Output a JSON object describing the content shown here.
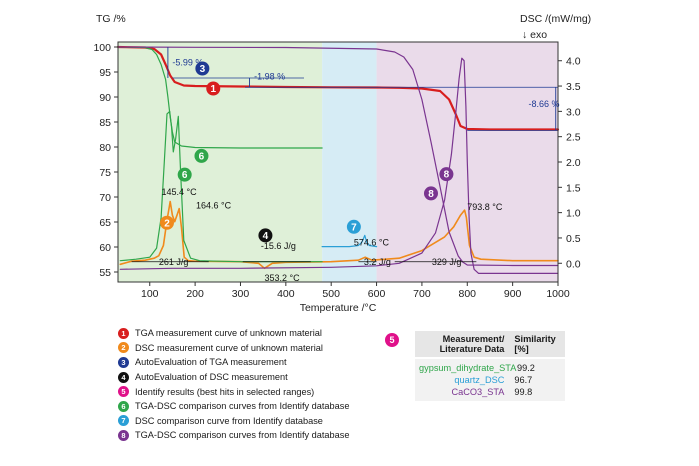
{
  "chart_data": {
    "type": "line",
    "xlabel": "Temperature /°C",
    "ylabel_left": "TG /%",
    "ylabel_right": "DSC /(mW/mg)",
    "exo_label": "↓ exo",
    "xlim": [
      30,
      1000
    ],
    "ylim_left": [
      53,
      101
    ],
    "ylim_right": [
      -0.37,
      4.37
    ],
    "x_ticks": [
      "100",
      "200",
      "300",
      "400",
      "500",
      "600",
      "700",
      "800",
      "900",
      "1000"
    ],
    "y_ticks_left": [
      "100",
      "95",
      "90",
      "85",
      "80",
      "75",
      "70",
      "65",
      "60",
      "55"
    ],
    "y_ticks_right": [
      "4.0",
      "3.5",
      "3.0",
      "2.5",
      "2.0",
      "1.5",
      "1.0",
      "0.5",
      "0.0"
    ],
    "background_ranges": [
      {
        "xmin": 30,
        "xmax": 480,
        "color": "#dff0d8"
      },
      {
        "xmin": 480,
        "xmax": 600,
        "color": "#d6ecf5"
      },
      {
        "xmin": 600,
        "xmax": 1000,
        "color": "#eadbea"
      }
    ],
    "series": [
      {
        "key": "tga_unknown",
        "axis": "left",
        "color": "#d81e1e",
        "width": 2.2,
        "x": [
          30,
          90,
          110,
          125,
          135,
          145,
          155,
          175,
          200,
          300,
          400,
          500,
          600,
          650,
          700,
          740,
          760,
          775,
          785,
          800,
          850,
          900,
          1000
        ],
        "y": [
          100,
          99.9,
          99.6,
          98.5,
          96.5,
          94.3,
          93.0,
          92.3,
          92.2,
          92.1,
          92.0,
          91.95,
          91.9,
          91.85,
          91.7,
          91.2,
          89.5,
          86.5,
          84.2,
          83.6,
          83.5,
          83.5,
          83.5
        ]
      },
      {
        "key": "dsc_unknown",
        "axis": "right",
        "color": "#f08a1c",
        "width": 1.6,
        "x": [
          35,
          60,
          90,
          110,
          120,
          130,
          138,
          145,
          150,
          155,
          160,
          165,
          170,
          176,
          185,
          200,
          300,
          340,
          353,
          370,
          400,
          500,
          560,
          575,
          590,
          650,
          700,
          750,
          770,
          785,
          794,
          798,
          805,
          815,
          830,
          900,
          1000
        ],
        "y": [
          -0.02,
          0.04,
          0.06,
          0.1,
          0.15,
          0.35,
          0.85,
          1.22,
          0.95,
          0.82,
          0.95,
          1.08,
          0.7,
          0.12,
          0.05,
          0.04,
          0.03,
          0.0,
          -0.1,
          0.0,
          0.02,
          0.03,
          0.06,
          0.12,
          0.06,
          0.1,
          0.25,
          0.52,
          0.72,
          0.95,
          1.05,
          0.9,
          0.35,
          0.12,
          0.08,
          0.05,
          0.05
        ]
      },
      {
        "key": "tga_gypsum_ref",
        "axis": "left",
        "color": "#2fa64a",
        "width": 1.2,
        "x": [
          30,
          90,
          105,
          115,
          125,
          135,
          140,
          145,
          150,
          155,
          170,
          200,
          300,
          400,
          480
        ],
        "y": [
          100,
          99.9,
          99.5,
          98.5,
          96.5,
          93.5,
          90.0,
          86.0,
          83.0,
          81.0,
          80.2,
          79.9,
          79.8,
          79.8,
          79.8
        ]
      },
      {
        "key": "dsc_gypsum_ref",
        "axis": "right",
        "color": "#2fa64a",
        "width": 1.2,
        "x": [
          35,
          70,
          100,
          115,
          125,
          132,
          138,
          144,
          148,
          152,
          157,
          163,
          168,
          175,
          190,
          210,
          250,
          300,
          350,
          400,
          480
        ],
        "y": [
          0.05,
          0.08,
          0.12,
          0.3,
          0.9,
          2.0,
          2.95,
          3.0,
          2.7,
          2.2,
          2.45,
          2.9,
          1.8,
          0.45,
          0.1,
          0.05,
          0.04,
          0.03,
          0.03,
          0.03,
          0.03
        ]
      },
      {
        "key": "dsc_quartz_ref",
        "axis": "right",
        "color": "#2a9fd6",
        "width": 1.2,
        "x": [
          480,
          540,
          560,
          568,
          574,
          578,
          584,
          600
        ],
        "y": [
          0.33,
          0.33,
          0.35,
          0.42,
          0.55,
          0.42,
          0.35,
          0.33
        ]
      },
      {
        "key": "tga_caco3_ref",
        "axis": "left",
        "color": "#7a3590",
        "width": 1.2,
        "x": [
          30,
          200,
          400,
          600,
          640,
          660,
          680,
          700,
          720,
          740,
          760,
          780,
          790,
          800,
          900,
          1000
        ],
        "y": [
          100,
          99.95,
          99.9,
          99.6,
          99.0,
          98.0,
          95.5,
          89.5,
          81.0,
          72.0,
          63.0,
          58.2,
          57.0,
          56.4,
          56.3,
          56.3
        ]
      },
      {
        "key": "dsc_caco3_ref",
        "axis": "right",
        "color": "#7a3590",
        "width": 1.2,
        "x": [
          35,
          150,
          300,
          500,
          600,
          650,
          700,
          730,
          750,
          765,
          775,
          782,
          788,
          793,
          797,
          800,
          804,
          808,
          815,
          825,
          860,
          900,
          1000
        ],
        "y": [
          -0.12,
          -0.1,
          -0.1,
          -0.08,
          -0.05,
          0.0,
          0.2,
          0.6,
          1.25,
          2.15,
          3.0,
          3.65,
          4.05,
          4.0,
          3.1,
          2.0,
          0.9,
          0.2,
          -0.12,
          -0.2,
          -0.2,
          -0.2,
          -0.2
        ]
      }
    ],
    "annotations": [
      {
        "text": "-5.99 %",
        "x": 150,
        "y": 96.3,
        "axis": "left",
        "color": "blue"
      },
      {
        "text": "-1.98 %",
        "x": 330,
        "y": 93.5,
        "axis": "left",
        "color": "blue"
      },
      {
        "text": "-8.66 %",
        "x": 935,
        "y": 88.0,
        "axis": "left",
        "color": "blue"
      },
      {
        "text": "145.4 °C",
        "x": 126,
        "y": 1.35,
        "axis": "right",
        "color": "black"
      },
      {
        "text": "164.6 °C",
        "x": 202,
        "y": 1.08,
        "axis": "right",
        "color": "black"
      },
      {
        "text": "261 J/g",
        "x": 120,
        "y": -0.03,
        "axis": "right",
        "color": "black"
      },
      {
        "text": "-15.6 J/g",
        "x": 345,
        "y": 0.28,
        "axis": "right",
        "color": "black"
      },
      {
        "text": "353.2 °C",
        "x": 353,
        "y": -0.35,
        "axis": "right",
        "color": "black"
      },
      {
        "text": "574.6 °C",
        "x": 550,
        "y": 0.35,
        "axis": "right",
        "color": "black"
      },
      {
        "text": "3.2 J/g",
        "x": 572,
        "y": -0.03,
        "axis": "right",
        "color": "black"
      },
      {
        "text": "329 J/g",
        "x": 722,
        "y": -0.03,
        "axis": "right",
        "color": "black"
      },
      {
        "text": "793.8 °C",
        "x": 800,
        "y": 1.05,
        "axis": "right",
        "color": "black"
      }
    ],
    "badges": [
      {
        "num": "1",
        "x": 240,
        "y": 91.7,
        "axis": "left",
        "color": "#d81e1e"
      },
      {
        "num": "2",
        "x": 138,
        "y": 0.8,
        "axis": "right",
        "color": "#f08a1c"
      },
      {
        "num": "3",
        "x": 216,
        "y": 95.7,
        "axis": "left",
        "color": "#1f3a93"
      },
      {
        "num": "4",
        "x": 355,
        "y": 0.55,
        "axis": "right",
        "color": "#111111"
      },
      {
        "num": "6",
        "x": 214,
        "y": 2.12,
        "axis": "right",
        "color": "#2fa64a"
      },
      {
        "num": "6",
        "x": 177,
        "y": 1.75,
        "axis": "right",
        "color": "#2fa64a"
      },
      {
        "num": "7",
        "x": 550,
        "y": 0.72,
        "axis": "right",
        "color": "#2a9fd6"
      },
      {
        "num": "8",
        "x": 754,
        "y": 1.76,
        "axis": "right",
        "color": "#7a3590"
      },
      {
        "num": "8",
        "x": 720,
        "y": 1.38,
        "axis": "right",
        "color": "#7a3590"
      }
    ]
  },
  "legend": [
    {
      "num": "1",
      "color": "#d81e1e",
      "text": "TGA measurement curve of unknown material"
    },
    {
      "num": "2",
      "color": "#f08a1c",
      "text": "DSC measurement curve of unknown material"
    },
    {
      "num": "3",
      "color": "#1f3a93",
      "text": "AutoEvaluation of TGA measurement"
    },
    {
      "num": "4",
      "color": "#111111",
      "text": "AutoEvaluation of DSC measurement"
    },
    {
      "num": "5",
      "color": "#e0118a",
      "text": "Identify results (best hits in selected ranges)"
    },
    {
      "num": "6",
      "color": "#2fa64a",
      "text": "TGA-DSC comparison curves from Identify database"
    },
    {
      "num": "7",
      "color": "#2a9fd6",
      "text": "DSC comparison curve from Identify database"
    },
    {
      "num": "8",
      "color": "#7a3590",
      "text": "TGA-DSC comparison curves from Identify database"
    }
  ],
  "similarity": {
    "badge": "5",
    "badge_color": "#e0118a",
    "col_ref_line1": "Measurement/",
    "col_ref_line2": "Literature Data",
    "col_sim_line1": "Similarity",
    "col_sim_line2": "[%]",
    "rows": [
      {
        "ref": "gypsum_dihydrate_STA",
        "value": "99.2",
        "color": "#2fa64a"
      },
      {
        "ref": "quartz_DSC",
        "value": "96.7",
        "color": "#2a9fd6"
      },
      {
        "ref": "CaCO3_STA",
        "value": "99.8",
        "color": "#7a3590"
      }
    ]
  }
}
